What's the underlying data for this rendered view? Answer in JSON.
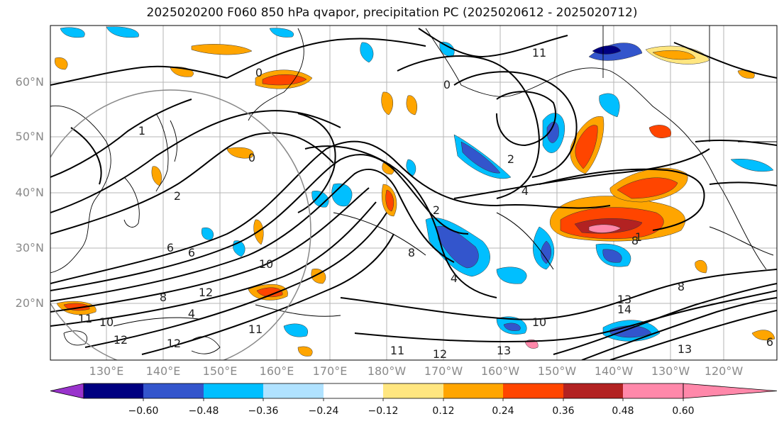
{
  "title": "2025020200 F060 850 hPa qvapor, precipitation PC (2025020612 - 2025020712)",
  "lat_labels": [
    "60°N",
    "50°N",
    "40°N",
    "30°N",
    "20°N"
  ],
  "lon_labels": [
    "130°E",
    "140°E",
    "150°E",
    "160°E",
    "170°E",
    "180°W",
    "170°W",
    "160°W",
    "150°W",
    "140°W",
    "130°W",
    "120°W"
  ],
  "contour_labels": [
    "1",
    "0",
    "0",
    "0",
    "2",
    "4",
    "6",
    "8",
    "10",
    "12",
    "4",
    "2",
    "2",
    "4",
    "6",
    "8",
    "10",
    "11",
    "11",
    "12",
    "13",
    "12",
    "11",
    "6",
    "8",
    "8",
    "10",
    "13",
    "11",
    "1",
    "12",
    "13",
    "14"
  ],
  "colorbar": {
    "colors": [
      "#9933cc",
      "#000080",
      "#3355cc",
      "#00bfff",
      "#b0e2ff",
      "#ffffff",
      "#ffe680",
      "#ffa500",
      "#ff4500",
      "#b22222",
      "#ff88aa",
      "#ff88aa"
    ],
    "tick_labels": [
      "−0.60",
      "−0.48",
      "−0.36",
      "−0.24",
      "−0.12",
      "0.12",
      "0.24",
      "0.36",
      "0.48",
      "0.60"
    ]
  }
}
